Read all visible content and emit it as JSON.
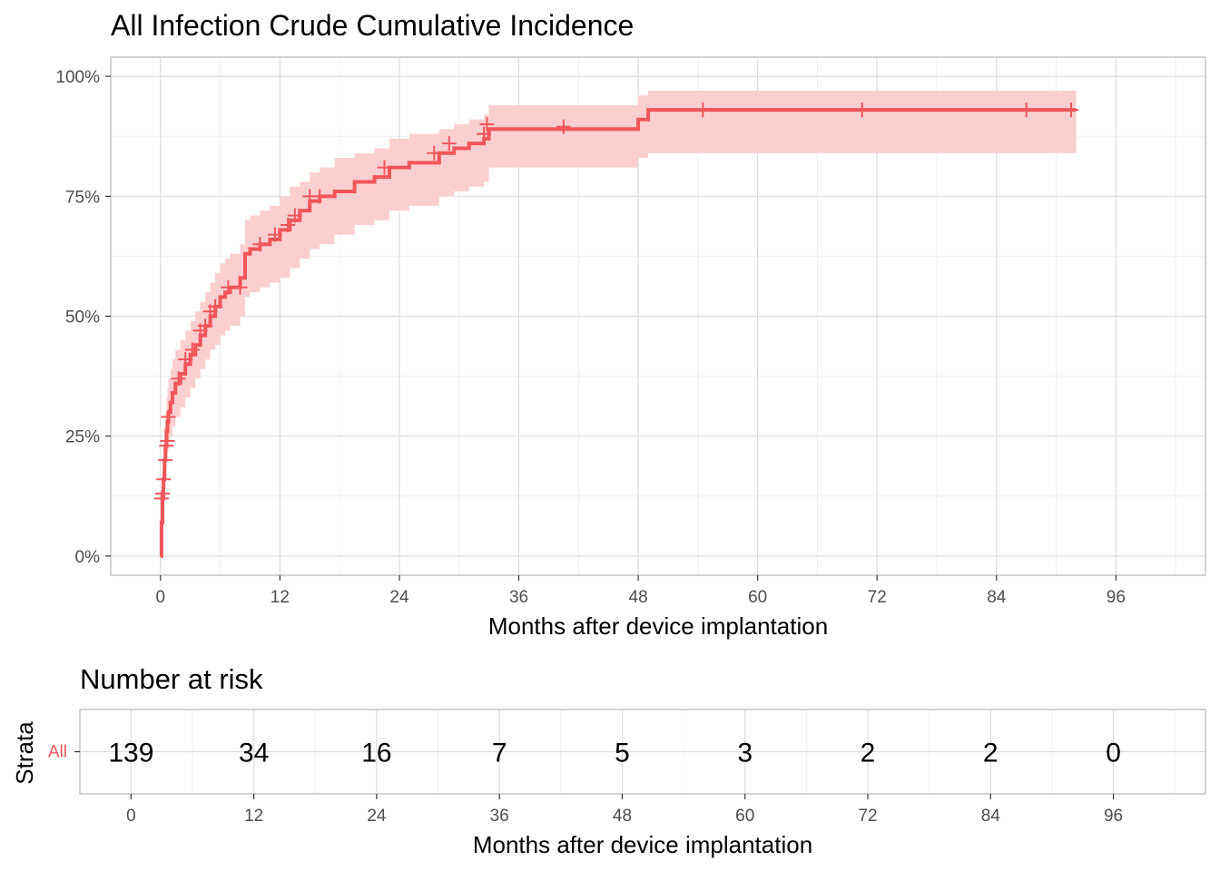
{
  "colors": {
    "series": "#F0565A",
    "band": "#FBCFCF",
    "grid_major": "#DCDCDC",
    "grid_minor": "#EFEFEF",
    "panel_border": "#B3B3B3"
  },
  "chart_data": [
    {
      "type": "line",
      "title": "All Infection Crude Cumulative Incidence",
      "xlabel": "Months after device implantation",
      "ylabel": "",
      "xlim": [
        -5,
        105
      ],
      "ylim": [
        -4,
        104
      ],
      "x_ticks": [
        0,
        12,
        24,
        36,
        48,
        60,
        72,
        84,
        96
      ],
      "x_tick_labels": [
        "0",
        "12",
        "24",
        "36",
        "48",
        "60",
        "72",
        "84",
        "96"
      ],
      "y_ticks": [
        0,
        25,
        50,
        75,
        100
      ],
      "y_tick_labels": [
        "0%",
        "25%",
        "50%",
        "75%",
        "100%"
      ],
      "grid": true,
      "series": [
        {
          "style": "step",
          "x": [
            0,
            0.1,
            0.2,
            0.3,
            0.4,
            0.5,
            0.6,
            0.7,
            0.8,
            1.0,
            1.2,
            1.5,
            2.0,
            2.5,
            3.0,
            3.5,
            4.0,
            4.5,
            5.0,
            5.5,
            6.0,
            6.5,
            7.0,
            8.0,
            8.5,
            9.0,
            10.0,
            11.0,
            12.0,
            13.0,
            14.0,
            15.0,
            16.0,
            17.5,
            19.5,
            21.5,
            23.0,
            25.0,
            28.0,
            29.5,
            31.0,
            32.5,
            33.0,
            47.5,
            48.0,
            49.0,
            92.0
          ],
          "y": [
            0,
            7,
            12,
            16,
            20,
            23,
            26,
            28,
            30,
            32,
            34,
            36,
            38,
            40,
            42,
            44,
            46,
            48,
            50,
            52,
            54,
            55,
            56,
            58,
            63,
            64,
            65,
            66,
            68,
            70,
            72,
            74,
            75,
            76,
            78,
            79,
            81,
            82,
            84,
            85,
            86,
            87,
            89,
            89,
            91,
            93,
            93
          ],
          "lower": [
            0,
            3,
            6,
            10,
            14,
            17,
            20,
            22,
            24,
            25,
            27,
            29,
            31,
            33,
            35,
            37,
            39,
            41,
            43,
            44,
            46,
            47,
            48,
            50,
            54,
            55,
            56,
            57,
            58,
            60,
            62,
            64,
            65,
            67,
            69,
            70,
            72,
            73,
            75,
            76,
            77,
            78,
            81,
            81,
            83,
            84,
            84
          ],
          "upper": [
            2,
            11,
            18,
            23,
            27,
            30,
            33,
            35,
            37,
            39,
            41,
            43,
            45,
            47,
            49,
            51,
            53,
            55,
            57,
            59,
            61,
            62,
            63,
            65,
            70,
            71,
            72,
            73,
            75,
            77,
            78,
            80,
            81,
            83,
            84,
            85,
            87,
            88,
            89,
            90,
            91,
            92,
            94,
            94,
            96,
            97,
            97
          ]
        }
      ],
      "censor_marks": [
        {
          "x": 0.1,
          "y": 12
        },
        {
          "x": 0.2,
          "y": 13
        },
        {
          "x": 0.3,
          "y": 16
        },
        {
          "x": 0.5,
          "y": 20
        },
        {
          "x": 0.6,
          "y": 23
        },
        {
          "x": 0.7,
          "y": 24
        },
        {
          "x": 0.8,
          "y": 29
        },
        {
          "x": 1.8,
          "y": 37
        },
        {
          "x": 2.5,
          "y": 41
        },
        {
          "x": 3.2,
          "y": 43
        },
        {
          "x": 4.0,
          "y": 47
        },
        {
          "x": 4.5,
          "y": 48
        },
        {
          "x": 5.0,
          "y": 51
        },
        {
          "x": 5.5,
          "y": 52
        },
        {
          "x": 6.8,
          "y": 56
        },
        {
          "x": 8.0,
          "y": 56
        },
        {
          "x": 10.0,
          "y": 65
        },
        {
          "x": 11.5,
          "y": 67
        },
        {
          "x": 12.8,
          "y": 69
        },
        {
          "x": 13.5,
          "y": 71
        },
        {
          "x": 15.0,
          "y": 75
        },
        {
          "x": 16.0,
          "y": 75
        },
        {
          "x": 22.5,
          "y": 81
        },
        {
          "x": 27.5,
          "y": 84
        },
        {
          "x": 29.0,
          "y": 86
        },
        {
          "x": 32.5,
          "y": 88
        },
        {
          "x": 32.8,
          "y": 90
        },
        {
          "x": 40.5,
          "y": 89.5
        },
        {
          "x": 54.5,
          "y": 93
        },
        {
          "x": 70.5,
          "y": 93
        },
        {
          "x": 87.0,
          "y": 93
        },
        {
          "x": 91.5,
          "y": 93
        }
      ]
    },
    {
      "type": "table",
      "title": "Number at risk",
      "xlabel": "Months after device implantation",
      "ylabel": "Strata",
      "xlim": [
        -5,
        105
      ],
      "x_ticks": [
        0,
        12,
        24,
        36,
        48,
        60,
        72,
        84,
        96
      ],
      "x_tick_labels": [
        "0",
        "12",
        "24",
        "36",
        "48",
        "60",
        "72",
        "84",
        "96"
      ],
      "strata": [
        "All"
      ],
      "rows": [
        {
          "strata": "All",
          "values": [
            "139",
            "34",
            "16",
            "7",
            "5",
            "3",
            "2",
            "2",
            "0"
          ]
        }
      ]
    }
  ]
}
